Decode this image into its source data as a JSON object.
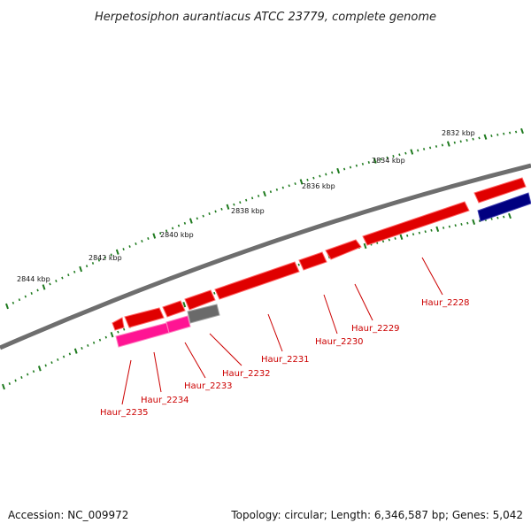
{
  "title": "Herpetosiphon aurantiacus ATCC 23779, complete genome",
  "colors": {
    "backbone": "#808080",
    "forward_gene": "#ff0000",
    "reverse_gene_pink": "#ff1493",
    "reverse_gene_gray": "#707070",
    "reverse_gene_navy": "#000080",
    "ticks": "#1e7a1e",
    "gene_label": "#cc0000"
  },
  "scale_labels": [
    {
      "label": "2832 kbp",
      "kbp": 2832
    },
    {
      "label": "2834 kbp",
      "kbp": 2834
    },
    {
      "label": "2836 kbp",
      "kbp": 2836
    },
    {
      "label": "2838 kbp",
      "kbp": 2838
    },
    {
      "label": "2840 kbp",
      "kbp": 2840
    },
    {
      "label": "2842 kbp",
      "kbp": 2842
    },
    {
      "label": "2844 kbp",
      "kbp": 2844
    }
  ],
  "gene_labels": [
    {
      "name": "Haur_2228"
    },
    {
      "name": "Haur_2229"
    },
    {
      "name": "Haur_2230"
    },
    {
      "name": "Haur_2231"
    },
    {
      "name": "Haur_2232"
    },
    {
      "name": "Haur_2233"
    },
    {
      "name": "Haur_2234"
    },
    {
      "name": "Haur_2235"
    }
  ],
  "footer": {
    "accession": "Accession: NC_009972",
    "summary": "Topology: circular; Length: 6,346,587 bp; Genes: 5,042"
  }
}
